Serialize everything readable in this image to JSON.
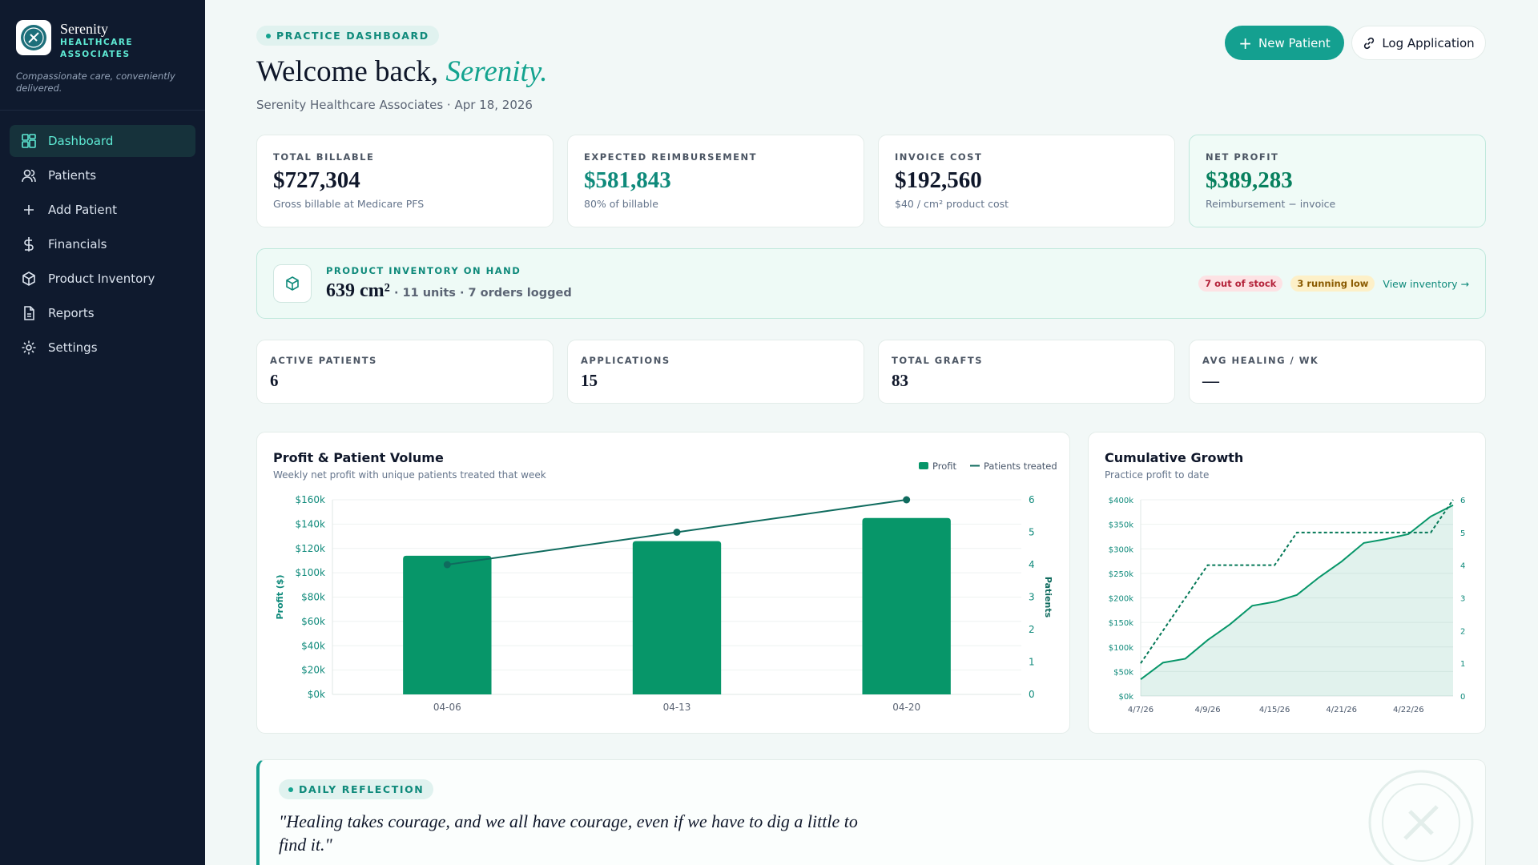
{
  "sidebar": {
    "brand": "Serenity",
    "brand_sub": "HEALTHCARE ASSOCIATES",
    "tagline": "Compassionate care, conveniently delivered.",
    "nav": [
      "Dashboard",
      "Patients",
      "Add Patient",
      "Financials",
      "Product Inventory",
      "Reports",
      "Settings"
    ]
  },
  "header": {
    "badge": "PRACTICE DASHBOARD",
    "greeting": "Welcome back,",
    "name": "Serenity.",
    "subtitle": "Serenity Healthcare Associates · Apr 18, 2026",
    "buttons": [
      "New Patient",
      "Log Application"
    ]
  },
  "kpis": [
    {
      "label": "TOTAL BILLABLE",
      "value": "$727,304",
      "note": "Gross billable at Medicare PFS"
    },
    {
      "label": "EXPECTED REIMBURSEMENT",
      "value": "$581,843",
      "note": "80% of billable"
    },
    {
      "label": "INVOICE COST",
      "value": "$192,560",
      "note": "$40 / cm² product cost"
    },
    {
      "label": "NET PROFIT",
      "value": "$389,283",
      "note": "Reimbursement − invoice"
    }
  ],
  "inventory": {
    "label": "PRODUCT INVENTORY ON HAND",
    "value": "639 cm²",
    "details": "· 11 units · 7 orders logged",
    "badges": [
      "7 out of stock",
      "3 running low"
    ],
    "link": "View inventory →"
  },
  "stats": [
    {
      "label": "ACTIVE PATIENTS",
      "value": "6"
    },
    {
      "label": "APPLICATIONS",
      "value": "15"
    },
    {
      "label": "TOTAL GRAFTS",
      "value": "83"
    },
    {
      "label": "AVG HEALING / WK",
      "value": "—"
    }
  ],
  "chart_data": [
    {
      "type": "bar",
      "title": "Profit & Patient Volume",
      "subtitle": "Weekly net profit with unique patients treated that week",
      "categories": [
        "04-06",
        "04-13",
        "04-20"
      ],
      "series": [
        {
          "name": "Profit",
          "type": "bar",
          "color": "#079669",
          "values": [
            114000,
            126000,
            145000
          ]
        },
        {
          "name": "Patients treated",
          "type": "line",
          "color": "#0f6b5e",
          "axis": "y2",
          "values": [
            4,
            5,
            6
          ]
        }
      ],
      "ylabel": "Profit ($)",
      "y2label": "Patients",
      "ylim": [
        0,
        160000
      ],
      "yticks": [
        {
          "value": 0,
          "label": "$0k"
        },
        {
          "value": 20000,
          "label": "$20k"
        },
        {
          "value": 40000,
          "label": "$40k"
        },
        {
          "value": 60000,
          "label": "$60k"
        },
        {
          "value": 80000,
          "label": "$80k"
        },
        {
          "value": 100000,
          "label": "$100k"
        },
        {
          "value": 120000,
          "label": "$120k"
        },
        {
          "value": 140000,
          "label": "$140k"
        },
        {
          "value": 160000,
          "label": "$160k"
        }
      ],
      "y2lim": [
        0,
        6
      ],
      "y2ticks": [
        0,
        1,
        2,
        3,
        4,
        5,
        6
      ],
      "grid": true,
      "legend": "top-right"
    },
    {
      "type": "line",
      "title": "Cumulative Growth",
      "subtitle": "Practice profit to date",
      "categories": [
        "4/7/26",
        null,
        null,
        "4/9/26",
        null,
        null,
        "4/15/26",
        null,
        null,
        "4/21/26",
        null,
        null,
        "4/22/26",
        null,
        null
      ],
      "series": [
        {
          "name": "Profit",
          "type": "line",
          "area": true,
          "color": "#079669",
          "values": [
            34000,
            68000,
            76000,
            114000,
            146000,
            184000,
            192000,
            206000,
            242000,
            274000,
            312000,
            320000,
            330000,
            366000,
            389000
          ]
        },
        {
          "name": "Patients",
          "type": "line",
          "dashed": true,
          "color": "#047857",
          "axis": "y2",
          "values": [
            1,
            2,
            3,
            4,
            4,
            4,
            4,
            5,
            5,
            5,
            5,
            5,
            5,
            5,
            6
          ]
        }
      ],
      "ylim": [
        0,
        400000
      ],
      "yticks": [
        {
          "value": 0,
          "label": "$0k"
        },
        {
          "value": 50000,
          "label": "$50k"
        },
        {
          "value": 100000,
          "label": "$100k"
        },
        {
          "value": 150000,
          "label": "$150k"
        },
        {
          "value": 200000,
          "label": "$200k"
        },
        {
          "value": 250000,
          "label": "$250k"
        },
        {
          "value": 300000,
          "label": "$300k"
        },
        {
          "value": 350000,
          "label": "$350k"
        },
        {
          "value": 400000,
          "label": "$400k"
        }
      ],
      "y2lim": [
        0,
        6
      ],
      "y2ticks": [
        0,
        1,
        2,
        3,
        4,
        5,
        6
      ],
      "grid": true
    }
  ],
  "reflection": {
    "badge": "DAILY REFLECTION",
    "quote": "\"Healing takes courage, and we all have courage, even if we have to dig a little to find it.\""
  }
}
